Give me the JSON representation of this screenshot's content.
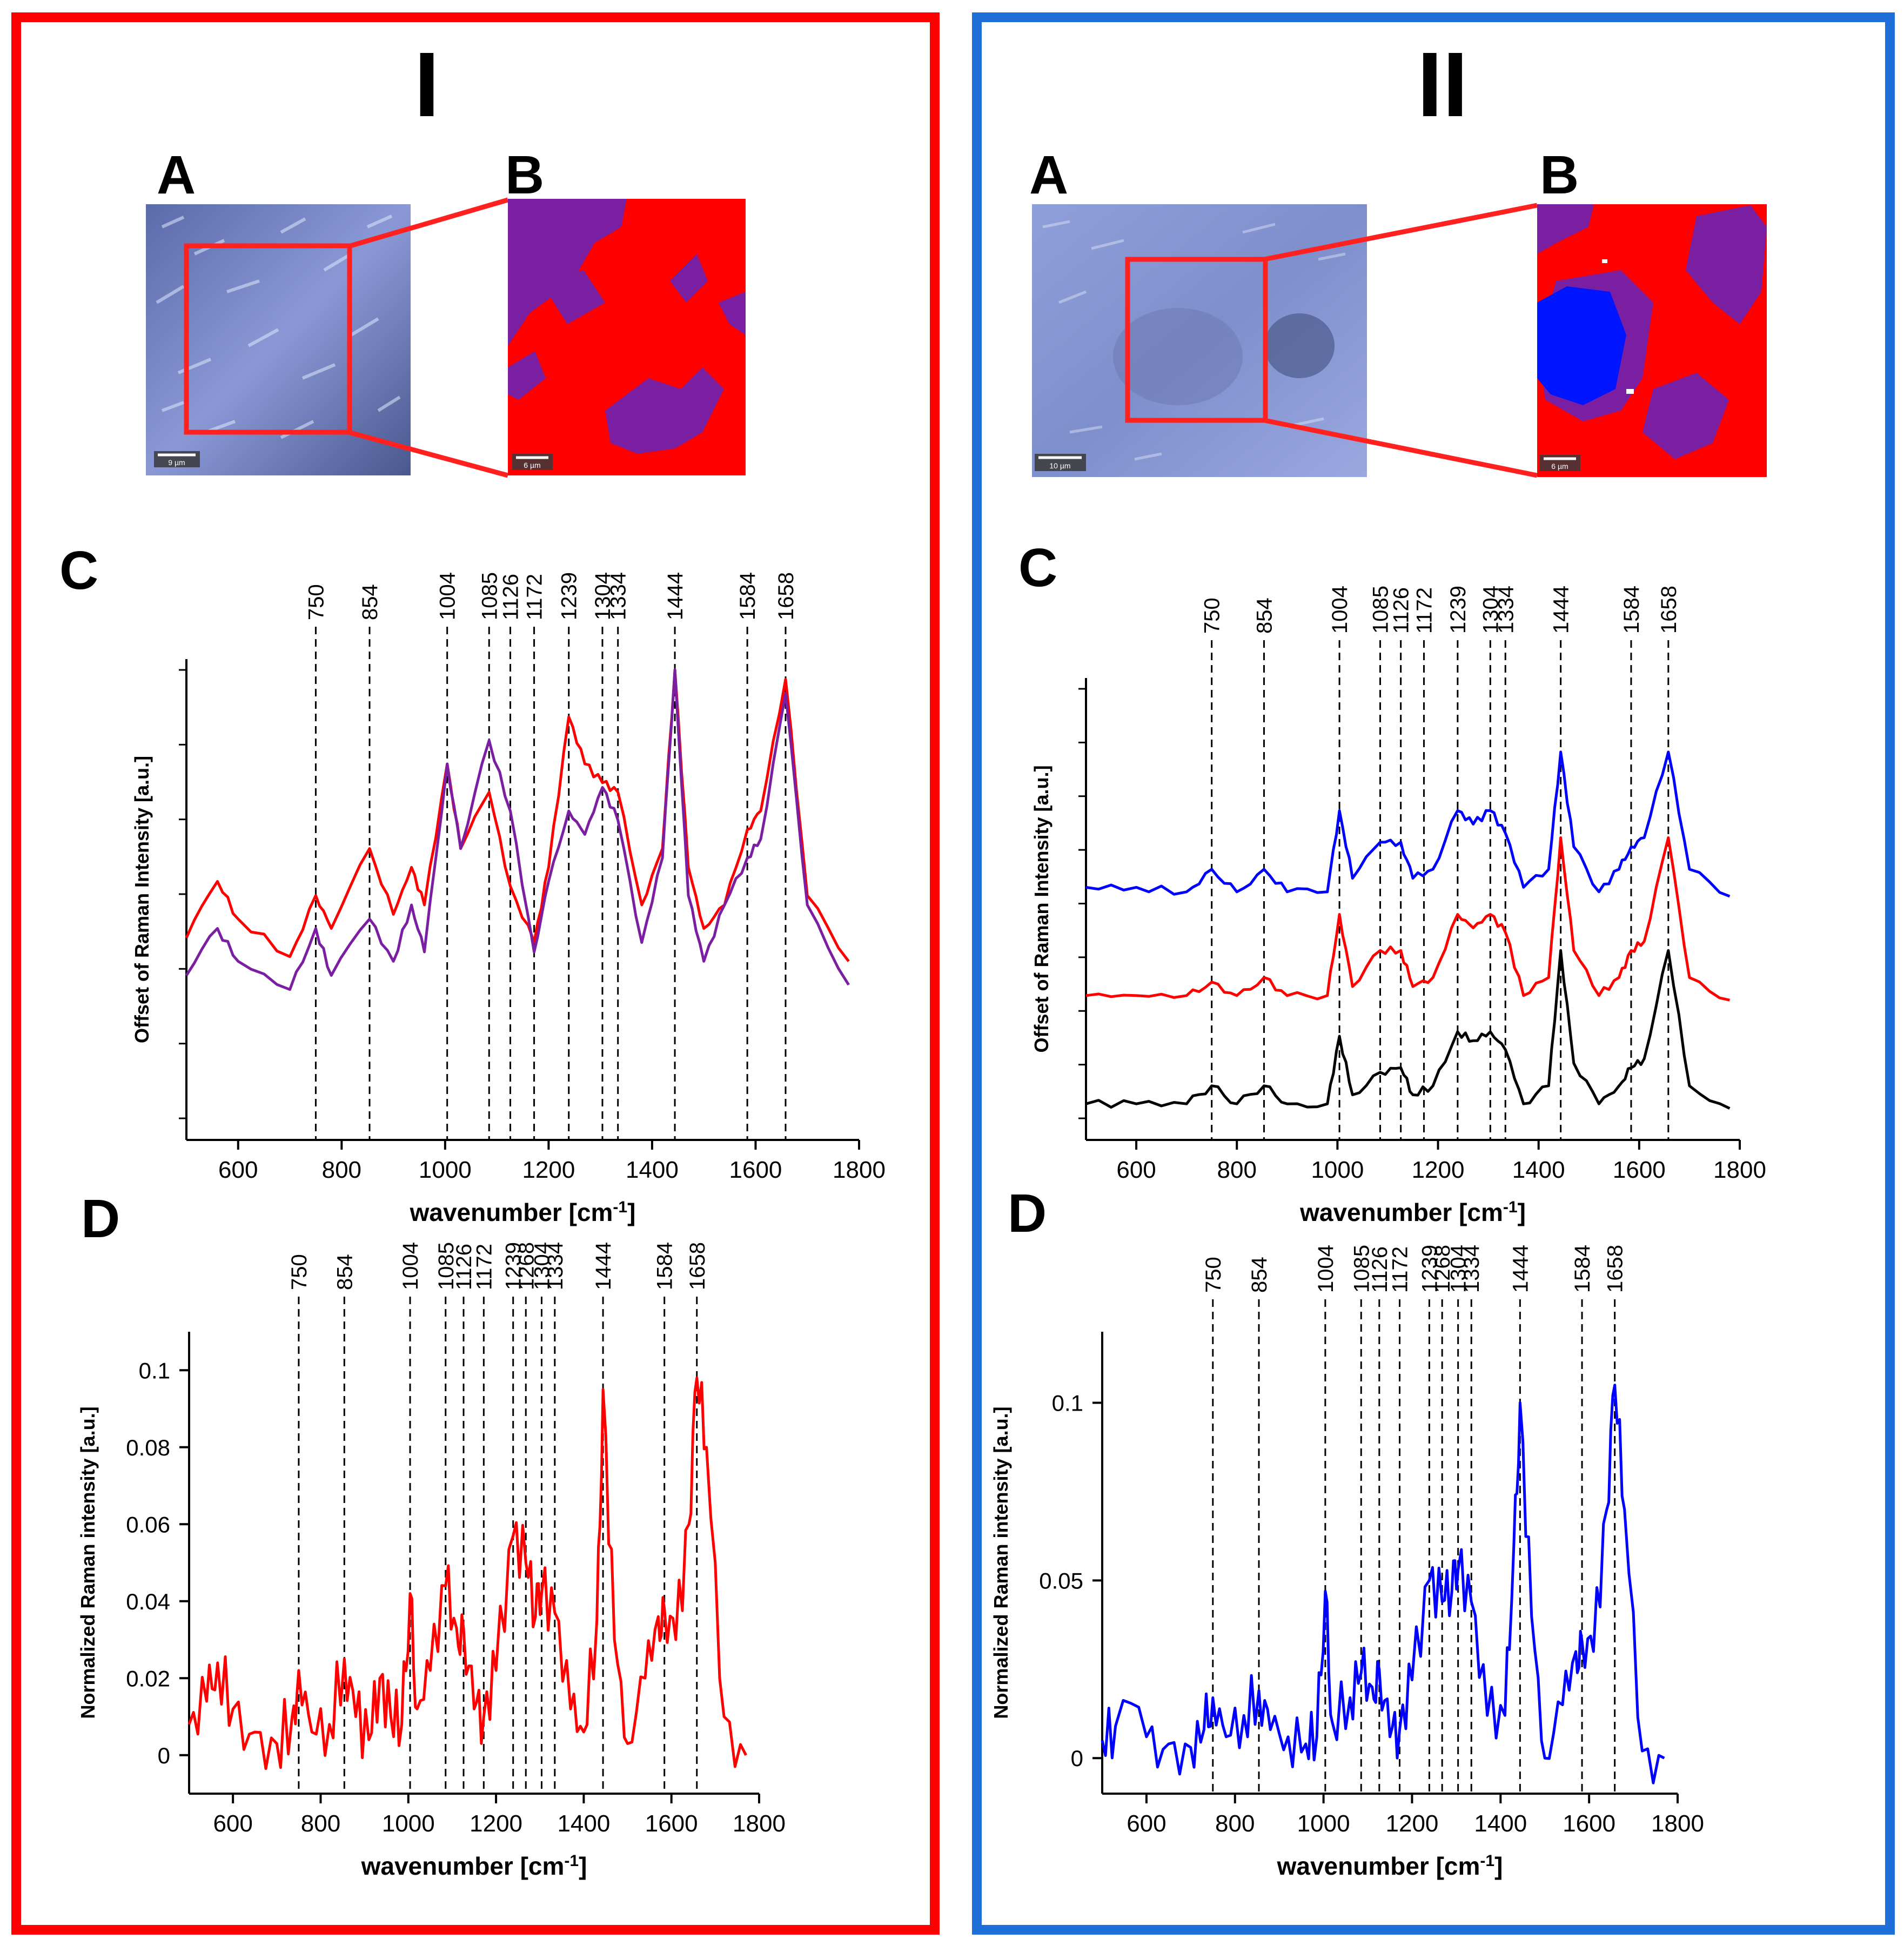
{
  "panels": [
    {
      "title": "I",
      "frame_color": "#ff0000",
      "label_a": "A",
      "label_b": "B",
      "label_c": "C",
      "label_d": "D",
      "scalebar_a": "9 µm",
      "scalebar_b": "6 µm"
    },
    {
      "title": "II",
      "frame_color": "#1f6fd8",
      "label_a": "A",
      "label_b": "B",
      "label_c": "C",
      "label_d": "D",
      "scalebar_a": "10 µm",
      "scalebar_b": "6 µm"
    }
  ],
  "chart_data": [
    {
      "id": "I-C",
      "type": "line",
      "xlabel": "wavenumber [cm-1]",
      "ylabel": "Offset of Raman Intensity [a.u.]",
      "xlim": [
        500,
        1800
      ],
      "xticks": [
        600,
        800,
        1000,
        1200,
        1400,
        1600,
        1800
      ],
      "offset_plot": true,
      "band_labels": [
        "750",
        "854",
        "1004",
        "1085",
        "1126",
        "1172",
        "1239",
        "1304",
        "1334",
        "1444",
        "1584",
        "1658"
      ],
      "series": [
        {
          "color": "#ff0000",
          "x": [
            500,
            560,
            600,
            700,
            750,
            780,
            854,
            900,
            935,
            960,
            1004,
            1030,
            1085,
            1126,
            1172,
            1200,
            1239,
            1270,
            1304,
            1334,
            1380,
            1420,
            1444,
            1470,
            1500,
            1540,
            1584,
            1610,
            1658,
            1700,
            1780
          ],
          "y": [
            0.43,
            0.55,
            0.47,
            0.39,
            0.52,
            0.45,
            0.62,
            0.48,
            0.58,
            0.5,
            0.8,
            0.62,
            0.74,
            0.54,
            0.42,
            0.58,
            0.9,
            0.8,
            0.76,
            0.74,
            0.5,
            0.62,
            1.0,
            0.58,
            0.45,
            0.5,
            0.66,
            0.7,
            0.98,
            0.52,
            0.38
          ]
        },
        {
          "color": "#7b1fa2",
          "x": [
            500,
            560,
            600,
            700,
            750,
            780,
            854,
            900,
            935,
            960,
            1004,
            1030,
            1085,
            1126,
            1172,
            1200,
            1239,
            1270,
            1304,
            1334,
            1380,
            1420,
            1444,
            1470,
            1500,
            1540,
            1584,
            1610,
            1658,
            1700,
            1780
          ],
          "y": [
            0.35,
            0.45,
            0.38,
            0.32,
            0.45,
            0.35,
            0.47,
            0.38,
            0.5,
            0.4,
            0.8,
            0.62,
            0.85,
            0.7,
            0.4,
            0.55,
            0.7,
            0.65,
            0.75,
            0.68,
            0.42,
            0.6,
            1.0,
            0.52,
            0.38,
            0.5,
            0.6,
            0.64,
            0.95,
            0.5,
            0.33
          ]
        }
      ]
    },
    {
      "id": "I-D",
      "type": "line",
      "xlabel": "wavenumber [cm-1]",
      "ylabel": "Normalized Raman intensity [a.u.]",
      "xlim": [
        500,
        1800
      ],
      "ylim": [
        -0.01,
        0.11
      ],
      "xticks": [
        600,
        800,
        1000,
        1200,
        1400,
        1600,
        1800
      ],
      "yticks": [
        0,
        0.02,
        0.04,
        0.06,
        0.08,
        0.1
      ],
      "band_labels": [
        "750",
        "854",
        "1004",
        "1085",
        "1126",
        "1172",
        "1239",
        "1268",
        "1304",
        "1334",
        "1444",
        "1584",
        "1658"
      ],
      "series": [
        {
          "color": "#ff0000",
          "x": [
            500,
            540,
            565,
            600,
            650,
            700,
            735,
            750,
            780,
            820,
            854,
            880,
            910,
            935,
            960,
            985,
            1004,
            1020,
            1050,
            1085,
            1110,
            1126,
            1150,
            1172,
            1200,
            1239,
            1268,
            1290,
            1304,
            1334,
            1370,
            1400,
            1430,
            1444,
            1470,
            1500,
            1540,
            1570,
            1584,
            1610,
            1640,
            1658,
            1680,
            1720,
            1770
          ],
          "y": [
            0.008,
            0.014,
            0.024,
            0.012,
            0.006,
            0.003,
            0.01,
            0.022,
            0.006,
            0.008,
            0.025,
            0.01,
            0.004,
            0.02,
            0.01,
            0.008,
            0.042,
            0.012,
            0.022,
            0.044,
            0.033,
            0.033,
            0.012,
            0.01,
            0.022,
            0.057,
            0.05,
            0.036,
            0.042,
            0.037,
            0.012,
            0.006,
            0.035,
            0.095,
            0.03,
            0.003,
            0.02,
            0.036,
            0.038,
            0.03,
            0.06,
            0.098,
            0.08,
            0.01,
            0.0
          ]
        }
      ]
    },
    {
      "id": "II-C",
      "type": "line",
      "xlabel": "wavenumber [cm-1]",
      "ylabel": "Offset of Raman Intensity [a.u.]",
      "xlim": [
        500,
        1800
      ],
      "xticks": [
        600,
        800,
        1000,
        1200,
        1400,
        1600,
        1800
      ],
      "offset_plot": true,
      "band_labels": [
        "750",
        "854",
        "1004",
        "1085",
        "1126",
        "1172",
        "1239",
        "1304",
        "1334",
        "1444",
        "1584",
        "1658"
      ],
      "series": [
        {
          "color": "#0000ff",
          "x": [
            500,
            600,
            700,
            750,
            800,
            854,
            900,
            980,
            1004,
            1030,
            1085,
            1126,
            1150,
            1190,
            1239,
            1270,
            1304,
            1334,
            1370,
            1420,
            1444,
            1470,
            1520,
            1560,
            1584,
            1610,
            1658,
            1700,
            1780
          ],
          "y": [
            0.56,
            0.56,
            0.55,
            0.6,
            0.55,
            0.6,
            0.55,
            0.55,
            0.73,
            0.58,
            0.66,
            0.66,
            0.58,
            0.6,
            0.73,
            0.7,
            0.73,
            0.68,
            0.56,
            0.6,
            0.86,
            0.65,
            0.55,
            0.6,
            0.65,
            0.67,
            0.86,
            0.6,
            0.54
          ]
        },
        {
          "color": "#ff0000",
          "x": [
            500,
            600,
            700,
            750,
            800,
            854,
            900,
            980,
            1004,
            1030,
            1085,
            1126,
            1150,
            1190,
            1239,
            1270,
            1304,
            1334,
            1370,
            1420,
            1444,
            1470,
            1520,
            1560,
            1584,
            1610,
            1658,
            1700,
            1780
          ],
          "y": [
            0.32,
            0.32,
            0.32,
            0.35,
            0.32,
            0.36,
            0.32,
            0.32,
            0.5,
            0.34,
            0.42,
            0.42,
            0.34,
            0.36,
            0.5,
            0.47,
            0.5,
            0.46,
            0.32,
            0.36,
            0.67,
            0.42,
            0.32,
            0.36,
            0.42,
            0.44,
            0.67,
            0.36,
            0.31
          ]
        },
        {
          "color": "#000000",
          "x": [
            500,
            600,
            700,
            750,
            800,
            854,
            900,
            980,
            1004,
            1030,
            1085,
            1126,
            1150,
            1190,
            1239,
            1270,
            1304,
            1334,
            1370,
            1420,
            1444,
            1470,
            1520,
            1560,
            1584,
            1610,
            1658,
            1700,
            1780
          ],
          "y": [
            0.08,
            0.08,
            0.08,
            0.12,
            0.08,
            0.12,
            0.08,
            0.08,
            0.23,
            0.1,
            0.15,
            0.16,
            0.1,
            0.12,
            0.24,
            0.22,
            0.24,
            0.2,
            0.08,
            0.12,
            0.42,
            0.17,
            0.08,
            0.12,
            0.16,
            0.18,
            0.42,
            0.12,
            0.07
          ]
        }
      ]
    },
    {
      "id": "II-D",
      "type": "line",
      "xlabel": "wavenumber [cm-1]",
      "ylabel": "Normalized Raman intensity [a.u.]",
      "xlim": [
        500,
        1800
      ],
      "ylim": [
        -0.01,
        0.12
      ],
      "xticks": [
        600,
        800,
        1000,
        1200,
        1400,
        1600,
        1800
      ],
      "yticks": [
        0,
        0.05,
        0.1
      ],
      "band_labels": [
        "750",
        "854",
        "1004",
        "1085",
        "1126",
        "1172",
        "1239",
        "1268",
        "1304",
        "1334",
        "1444",
        "1584",
        "1658"
      ],
      "series": [
        {
          "color": "#0000ff",
          "x": [
            500,
            530,
            600,
            650,
            700,
            730,
            750,
            780,
            820,
            854,
            880,
            920,
            960,
            985,
            1004,
            1020,
            1060,
            1085,
            1110,
            1126,
            1150,
            1172,
            1200,
            1239,
            1268,
            1290,
            1304,
            1334,
            1370,
            1410,
            1430,
            1444,
            1470,
            1500,
            1540,
            1570,
            1584,
            1610,
            1640,
            1658,
            1680,
            1720,
            1770
          ],
          "y": [
            0.005,
            0.009,
            0.006,
            0.004,
            0.003,
            0.008,
            0.017,
            0.006,
            0.012,
            0.019,
            0.008,
            0.006,
            0.004,
            0.006,
            0.047,
            0.01,
            0.017,
            0.024,
            0.02,
            0.025,
            0.006,
            0.008,
            0.022,
            0.05,
            0.044,
            0.047,
            0.053,
            0.044,
            0.012,
            0.012,
            0.06,
            0.1,
            0.04,
            0.0,
            0.015,
            0.03,
            0.033,
            0.03,
            0.07,
            0.105,
            0.07,
            0.002,
            0.0
          ]
        }
      ]
    }
  ]
}
